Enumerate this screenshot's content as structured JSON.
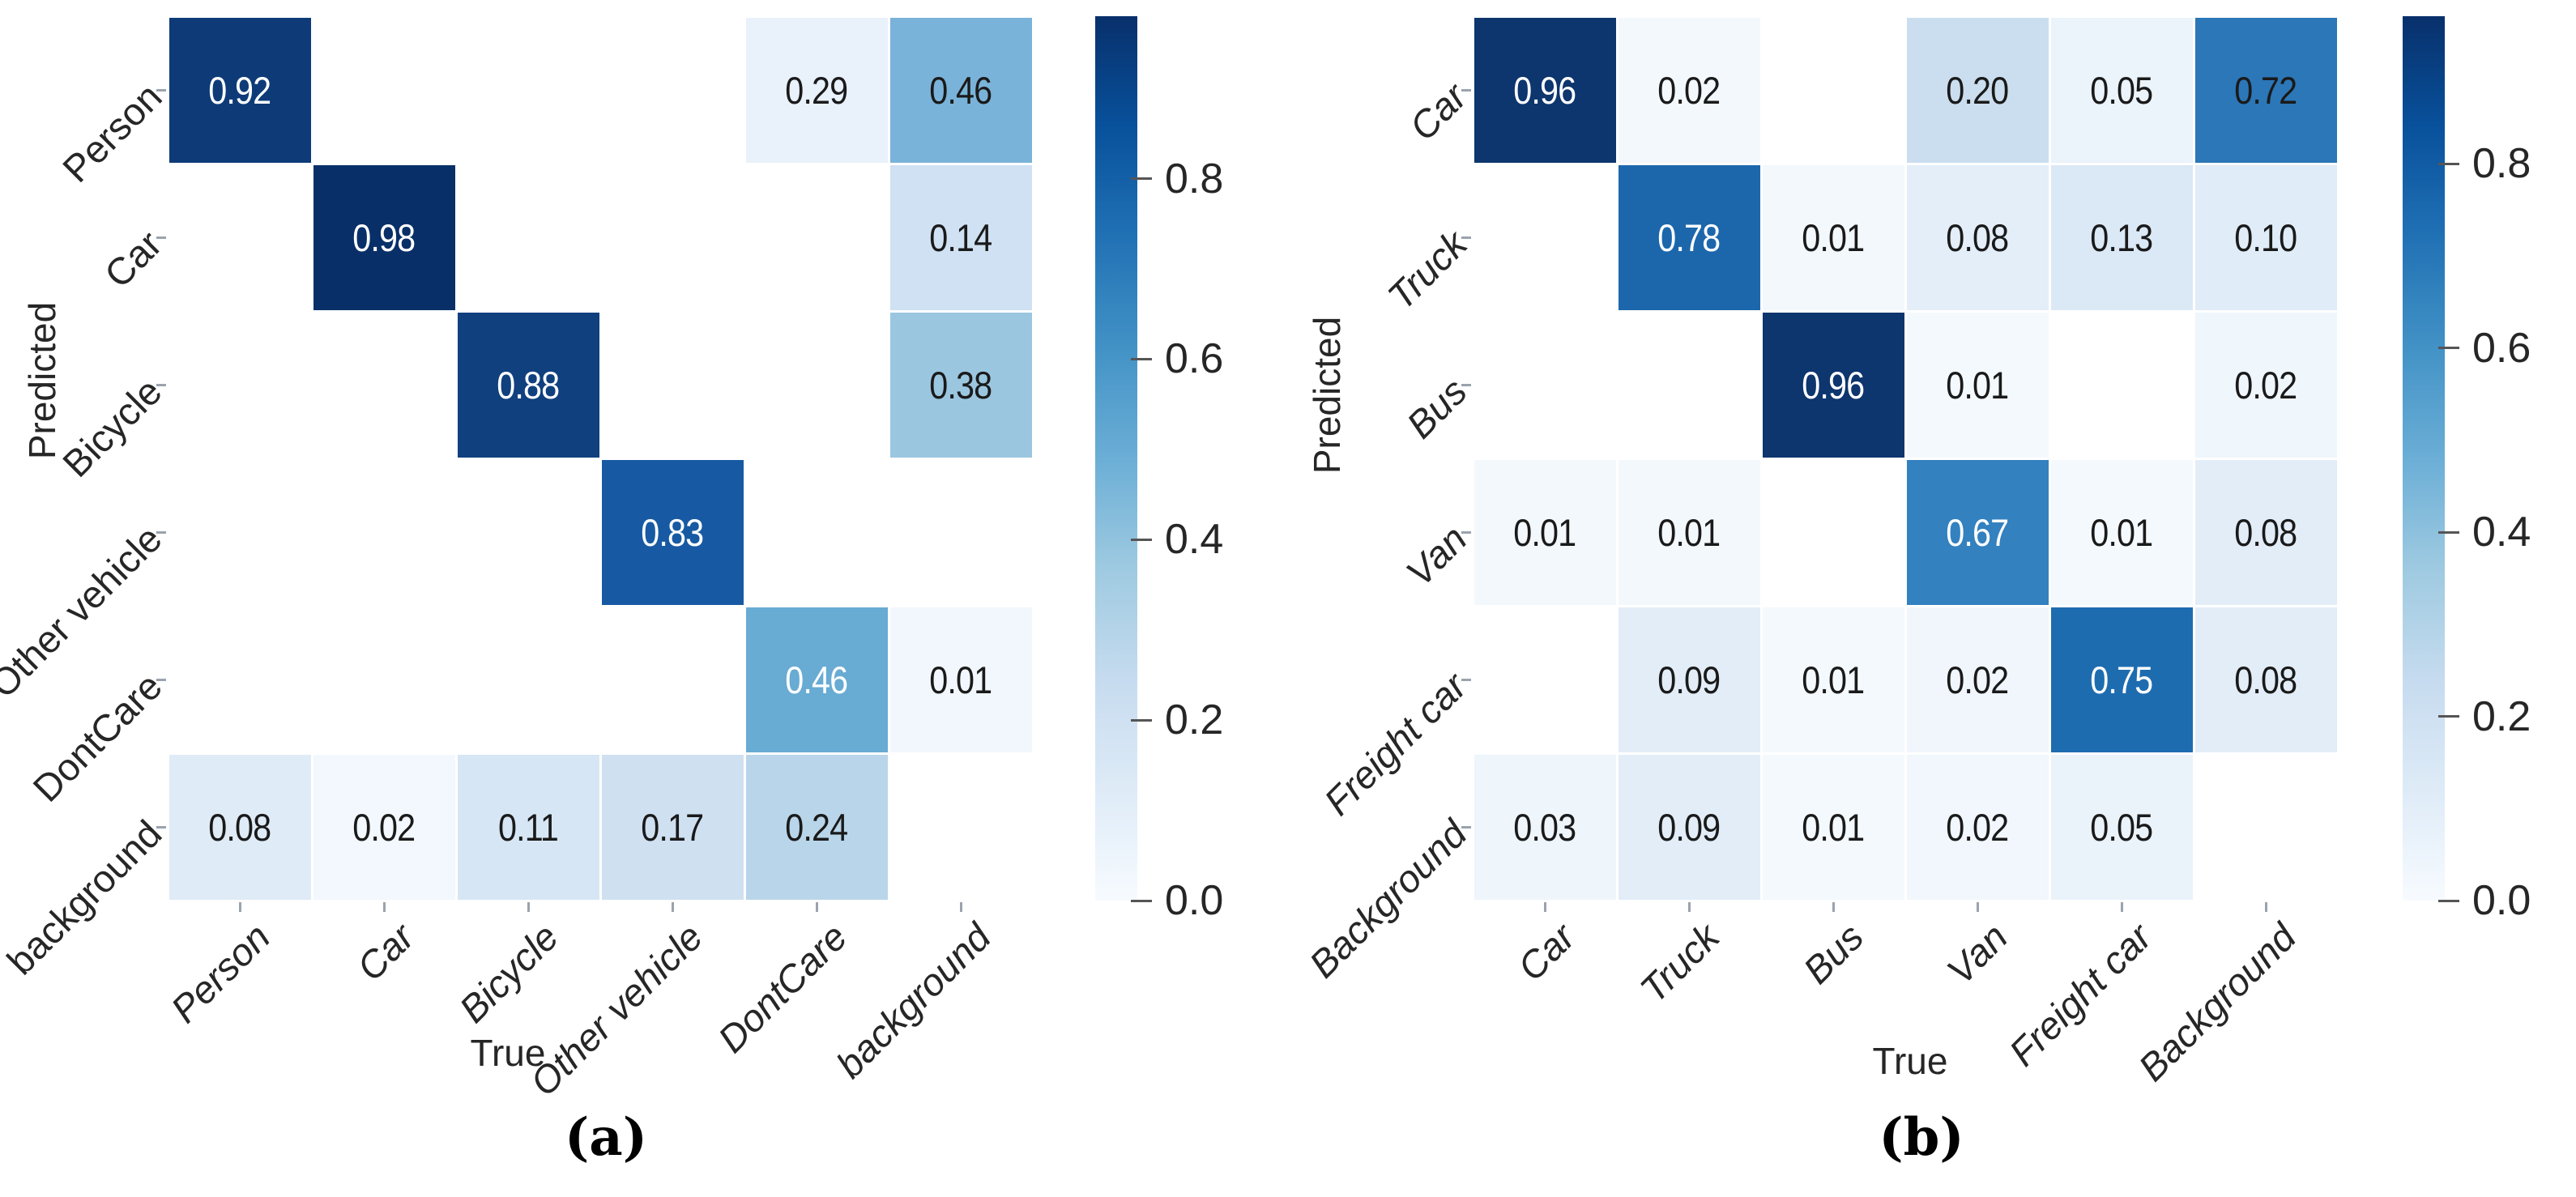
{
  "figure": {
    "description": "Two confusion matrices shown as blue heatmaps with colorbars",
    "colormap": "Blues",
    "background_color": "#ffffff",
    "annotation_black": "#1a1a1a",
    "annotation_white": "#ffffff"
  },
  "chart_data": [
    {
      "type": "heatmap",
      "panel": "a",
      "caption": "(a)",
      "xlabel": "True",
      "ylabel": "Predicted",
      "x_tick_labels": [
        "Person",
        "Car",
        "Bicycle",
        "Other vehicle",
        "DontCare",
        "background"
      ],
      "y_tick_labels": [
        "Person",
        "Car",
        "Bicycle",
        "Other vehicle",
        "DontCare",
        "background"
      ],
      "values": [
        [
          "0.92",
          null,
          null,
          null,
          "0.29",
          "0.46"
        ],
        [
          null,
          "0.98",
          null,
          null,
          null,
          "0.14"
        ],
        [
          null,
          null,
          "0.88",
          null,
          null,
          "0.38"
        ],
        [
          null,
          null,
          null,
          "0.83",
          null,
          null
        ],
        [
          null,
          null,
          null,
          null,
          "0.46",
          "0.01"
        ],
        [
          "0.08",
          "0.02",
          "0.11",
          "0.17",
          "0.24",
          null
        ]
      ],
      "cell_colors": [
        [
          "#0e3b78",
          null,
          null,
          null,
          "#e9f1fa",
          "#7ab3d9"
        ],
        [
          null,
          "#082f68",
          null,
          null,
          null,
          "#cfe1f2"
        ],
        [
          null,
          null,
          "#10407e",
          null,
          null,
          "#9bc6e0"
        ],
        [
          null,
          null,
          null,
          "#175aa3",
          null,
          null
        ],
        [
          null,
          null,
          null,
          null,
          "#68abd3",
          "#f1f7fc"
        ],
        [
          "#dfebf6",
          "#f2f8fd",
          "#d7e6f4",
          "#cfe0f1",
          "#b9d5ea",
          null
        ]
      ],
      "annot_colors": [
        [
          "#ffffff",
          null,
          null,
          null,
          "#1a1a1a",
          "#1a1a1a"
        ],
        [
          null,
          "#ffffff",
          null,
          null,
          null,
          "#1a1a1a"
        ],
        [
          null,
          null,
          "#ffffff",
          null,
          null,
          "#1a1a1a"
        ],
        [
          null,
          null,
          null,
          "#ffffff",
          null,
          null
        ],
        [
          null,
          null,
          null,
          null,
          "#ffffff",
          "#1a1a1a"
        ],
        [
          "#1a1a1a",
          "#1a1a1a",
          "#1a1a1a",
          "#1a1a1a",
          "#1a1a1a",
          null
        ]
      ],
      "colorbar": {
        "tick_labels": [
          "0.8",
          "0.6",
          "0.4",
          "0.2",
          "0.0"
        ],
        "tick_values": [
          0.8,
          0.6,
          0.4,
          0.2,
          0.0
        ],
        "vmin": 0.0,
        "vmax": 0.98,
        "colormap": "Blues",
        "position": "right"
      },
      "layout": {
        "x_tick_italic": true,
        "y_tick_italic": false,
        "tick_rotation_deg": 45,
        "grid": false,
        "empty_cell_color": "#ffffff"
      }
    },
    {
      "type": "heatmap",
      "panel": "b",
      "caption": "(b)",
      "xlabel": "True",
      "ylabel": "Predicted",
      "x_tick_labels": [
        "Car",
        "Truck",
        "Bus",
        "Van",
        "Freight car",
        "Background"
      ],
      "y_tick_labels": [
        "Car",
        "Truck",
        "Bus",
        "Van",
        "Freight car",
        "Background"
      ],
      "values": [
        [
          "0.96",
          "0.02",
          null,
          "0.20",
          "0.05",
          "0.72"
        ],
        [
          null,
          "0.78",
          "0.01",
          "0.08",
          "0.13",
          "0.10"
        ],
        [
          null,
          null,
          "0.96",
          "0.01",
          null,
          "0.02"
        ],
        [
          "0.01",
          "0.01",
          null,
          "0.67",
          "0.01",
          "0.08"
        ],
        [
          null,
          "0.09",
          "0.01",
          "0.02",
          "0.75",
          "0.08"
        ],
        [
          "0.03",
          "0.09",
          "0.01",
          "0.02",
          "0.05",
          null
        ]
      ],
      "cell_colors": [
        [
          "#0d356e",
          "#f3f8fd",
          null,
          "#cbdeef",
          "#ebf3fb",
          "#2b77b8"
        ],
        [
          null,
          "#1c67ac",
          "#f3f8fd",
          "#e3eef8",
          "#dbe8f5",
          "#e0ecf7"
        ],
        [
          null,
          null,
          "#0d356e",
          "#f4f9fd",
          null,
          "#eff6fc"
        ],
        [
          "#f3f8fd",
          "#f3f8fd",
          null,
          "#3381bf",
          "#f4f9fd",
          "#e2edf8"
        ],
        [
          null,
          "#e2edf7",
          "#f4f9fd",
          "#f0f6fc",
          "#1e6cb0",
          "#e2edf8"
        ],
        [
          "#eef5fb",
          "#e2edf7",
          "#f4f9fd",
          "#f1f7fc",
          "#eaf2fa",
          null
        ]
      ],
      "annot_colors": [
        [
          "#ffffff",
          "#1a1a1a",
          null,
          "#1a1a1a",
          "#1a1a1a",
          "#1a1a1a"
        ],
        [
          null,
          "#ffffff",
          "#1a1a1a",
          "#1a1a1a",
          "#1a1a1a",
          "#1a1a1a"
        ],
        [
          null,
          null,
          "#ffffff",
          "#1a1a1a",
          null,
          "#1a1a1a"
        ],
        [
          "#1a1a1a",
          "#1a1a1a",
          null,
          "#ffffff",
          "#1a1a1a",
          "#1a1a1a"
        ],
        [
          null,
          "#1a1a1a",
          "#1a1a1a",
          "#1a1a1a",
          "#ffffff",
          "#1a1a1a"
        ],
        [
          "#1a1a1a",
          "#1a1a1a",
          "#1a1a1a",
          "#1a1a1a",
          "#1a1a1a",
          null
        ]
      ],
      "colorbar": {
        "tick_labels": [
          "0.8",
          "0.6",
          "0.4",
          "0.2",
          "0.0"
        ],
        "tick_values": [
          0.8,
          0.6,
          0.4,
          0.2,
          0.0
        ],
        "vmin": 0.0,
        "vmax": 0.96,
        "colormap": "Blues",
        "position": "right"
      },
      "layout": {
        "x_tick_italic": true,
        "y_tick_italic": true,
        "tick_rotation_deg": 45,
        "grid": false,
        "empty_cell_color": "#ffffff"
      }
    }
  ]
}
